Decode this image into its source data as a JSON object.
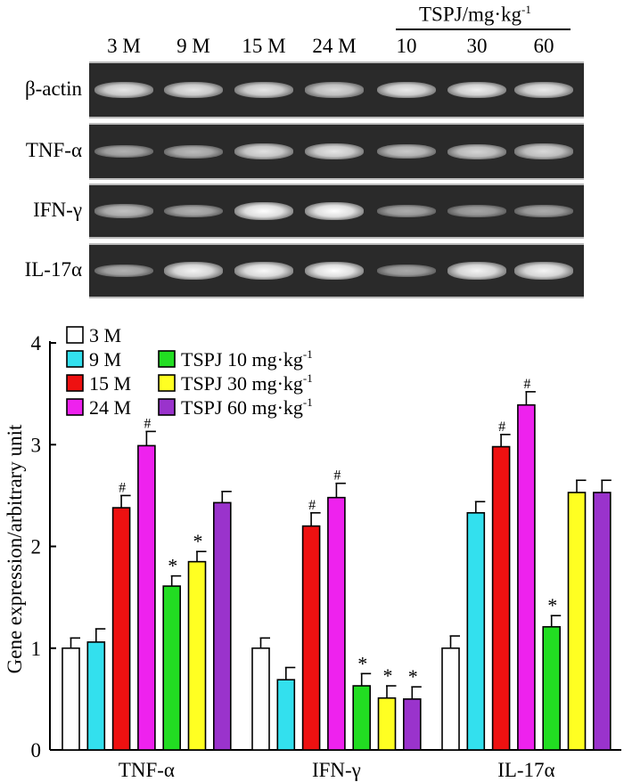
{
  "gel": {
    "lanes": [
      "3 M",
      "9 M",
      "15 M",
      "24 M",
      "10",
      "30",
      "60"
    ],
    "group_header": "TSPJ/mg·kg",
    "group_header_sup": "-1",
    "rows": [
      {
        "label": "β-actin",
        "intensity": [
          0.82,
          0.82,
          0.82,
          0.72,
          0.85,
          0.88,
          0.85
        ]
      },
      {
        "label": "TNF-α",
        "intensity": [
          0.45,
          0.5,
          0.78,
          0.82,
          0.62,
          0.7,
          0.72
        ]
      },
      {
        "label": "IFN-γ",
        "intensity": [
          0.55,
          0.45,
          1.0,
          1.0,
          0.4,
          0.35,
          0.4
        ]
      },
      {
        "label": "IL-17α",
        "intensity": [
          0.45,
          0.92,
          0.95,
          1.0,
          0.38,
          0.92,
          0.92
        ]
      }
    ]
  },
  "chart_data": {
    "type": "bar",
    "title": "",
    "xlabel": "",
    "ylabel": "Gene expression/arbitrary unit",
    "ylim": [
      0,
      4
    ],
    "yticks": [
      0,
      1,
      2,
      3,
      4
    ],
    "categories": [
      "TNF-α",
      "IFN-γ",
      "IL-17α"
    ],
    "legend_position": "top-left",
    "series": [
      {
        "name": "3 M",
        "color": "#ffffff",
        "values": [
          1.0,
          1.0,
          1.0
        ],
        "errors": [
          0.1,
          0.1,
          0.12
        ],
        "marks": [
          "",
          "",
          ""
        ]
      },
      {
        "name": "9 M",
        "color": "#33e0ee",
        "values": [
          1.06,
          0.69,
          2.33
        ],
        "errors": [
          0.13,
          0.12,
          0.11
        ],
        "marks": [
          "",
          "",
          ""
        ]
      },
      {
        "name": "15 M",
        "color": "#ee1111",
        "values": [
          2.38,
          2.2,
          2.98
        ],
        "errors": [
          0.12,
          0.13,
          0.12
        ],
        "marks": [
          "#",
          "#",
          "#"
        ]
      },
      {
        "name": "24 M",
        "color": "#ee22ee",
        "values": [
          2.99,
          2.48,
          3.39
        ],
        "errors": [
          0.14,
          0.14,
          0.13
        ],
        "marks": [
          "#",
          "#",
          "#"
        ]
      },
      {
        "name": "TSPJ 10 mg·kg",
        "name_sup": "-1",
        "color": "#22dd22",
        "values": [
          1.61,
          0.63,
          1.21
        ],
        "errors": [
          0.1,
          0.12,
          0.11
        ],
        "marks": [
          "*",
          "*",
          "*"
        ]
      },
      {
        "name": "TSPJ 30 mg·kg",
        "name_sup": "-1",
        "color": "#ffff22",
        "values": [
          1.85,
          0.51,
          2.53
        ],
        "errors": [
          0.1,
          0.12,
          0.12
        ],
        "marks": [
          "*",
          "*",
          ""
        ]
      },
      {
        "name": "TSPJ 60 mg·kg",
        "name_sup": "-1",
        "color": "#9a33cc",
        "values": [
          2.43,
          0.5,
          2.53
        ],
        "errors": [
          0.11,
          0.12,
          0.12
        ],
        "marks": [
          "",
          "*",
          ""
        ]
      }
    ]
  }
}
